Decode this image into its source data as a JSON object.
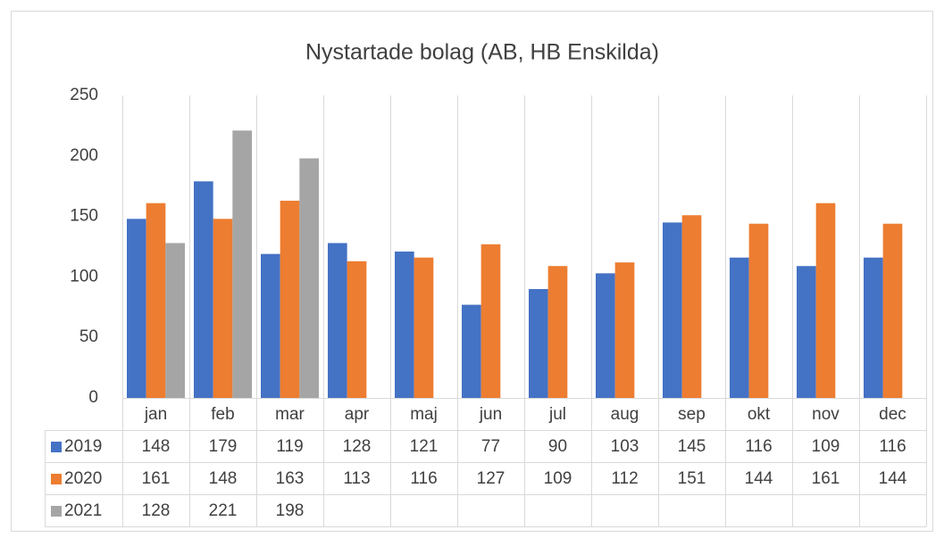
{
  "chart_data": {
    "type": "bar",
    "title": "Nystartade bolag (AB, HB Enskilda)",
    "categories": [
      "jan",
      "feb",
      "mar",
      "apr",
      "maj",
      "jun",
      "jul",
      "aug",
      "sep",
      "okt",
      "nov",
      "dec"
    ],
    "series": [
      {
        "name": "2019",
        "color": "#4472c4",
        "values": [
          148,
          179,
          119,
          128,
          121,
          77,
          90,
          103,
          145,
          116,
          109,
          116
        ]
      },
      {
        "name": "2020",
        "color": "#ed7d31",
        "values": [
          161,
          148,
          163,
          113,
          116,
          127,
          109,
          112,
          151,
          144,
          161,
          144
        ]
      },
      {
        "name": "2021",
        "color": "#a5a5a5",
        "values": [
          128,
          221,
          198,
          null,
          null,
          null,
          null,
          null,
          null,
          null,
          null,
          null
        ]
      }
    ],
    "ylim": [
      0,
      250
    ],
    "yticks": [
      0,
      50,
      100,
      150,
      200,
      250
    ],
    "grid": false,
    "data_table": true
  }
}
